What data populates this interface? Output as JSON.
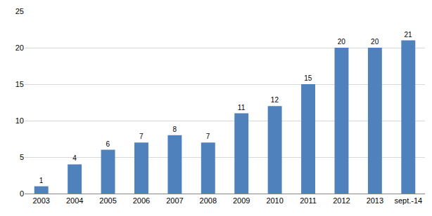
{
  "chart_data": {
    "type": "bar",
    "categories": [
      "2003",
      "2004",
      "2005",
      "2006",
      "2007",
      "2008",
      "2009",
      "2010",
      "2011",
      "2012",
      "2013",
      "sept.-14"
    ],
    "values": [
      1,
      4,
      6,
      7,
      8,
      7,
      11,
      12,
      15,
      20,
      20,
      21
    ],
    "color": "#4f81bd",
    "ylim": [
      0,
      25
    ],
    "yticks": [
      0,
      5,
      10,
      15,
      20,
      25
    ],
    "grid": true,
    "data_labels": true
  }
}
